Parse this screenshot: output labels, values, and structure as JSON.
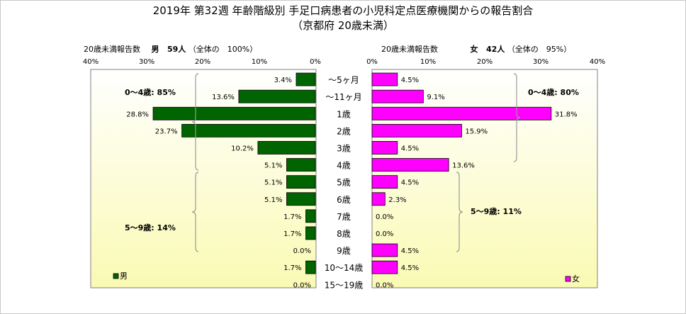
{
  "title": "2019年 第32週 年齢階級別 手足口病患者の小児科定点医療機関からの報告割合",
  "subtitle": "（京都府 20歳未満）",
  "left_header": {
    "count_label": "20歳未満報告数",
    "sex": "男",
    "count": "59人",
    "share": "（全体の　100%）"
  },
  "right_header": {
    "count_label": "20歳未満報告数",
    "sex": "女",
    "count": "42人",
    "share": "（全体の　95%）"
  },
  "colors": {
    "male": "#006400",
    "female": "#ff00ff",
    "plot_bg_top": "#ffffff",
    "plot_bg_bottom": "#fafab4",
    "brace": "#9a9a9a"
  },
  "annotations": {
    "male_0_4": "0～4歳: 85%",
    "male_5_9": "5～9歳: 14%",
    "female_0_4": "0～4歳: 80%",
    "female_5_9": "5～9歳: 11%"
  },
  "chart_data": {
    "type": "bar",
    "orientation": "horizontal-pyramid",
    "categories": [
      "～5ヶ月",
      "～11ヶ月",
      "1歳",
      "2歳",
      "3歳",
      "4歳",
      "5歳",
      "6歳",
      "7歳",
      "8歳",
      "9歳",
      "10～14歳",
      "15～19歳"
    ],
    "xlim": [
      0,
      40
    ],
    "xticks": [
      "40%",
      "30%",
      "20%",
      "10%",
      "0%",
      "0%",
      "10%",
      "20%",
      "30%",
      "40%"
    ],
    "series": [
      {
        "name": "男",
        "color": "#006400",
        "values": [
          3.4,
          13.6,
          28.8,
          23.7,
          10.2,
          5.1,
          5.1,
          5.1,
          1.7,
          1.7,
          0.0,
          1.7,
          0.0
        ],
        "labels": [
          "3.4%",
          "13.6%",
          "28.8%",
          "23.7%",
          "10.2%",
          "5.1%",
          "5.1%",
          "5.1%",
          "1.7%",
          "1.7%",
          "0.0%",
          "1.7%",
          "0.0%"
        ]
      },
      {
        "name": "女",
        "color": "#ff00ff",
        "values": [
          4.5,
          9.1,
          31.8,
          15.9,
          4.5,
          13.6,
          4.5,
          2.3,
          0.0,
          0.0,
          4.5,
          4.5,
          0.0
        ],
        "labels": [
          "4.5%",
          "9.1%",
          "31.8%",
          "15.9%",
          "4.5%",
          "13.6%",
          "4.5%",
          "2.3%",
          "0.0%",
          "0.0%",
          "4.5%",
          "4.5%",
          "0.0%"
        ]
      }
    ],
    "grid": false,
    "legend": "bottom-left / bottom-right"
  }
}
